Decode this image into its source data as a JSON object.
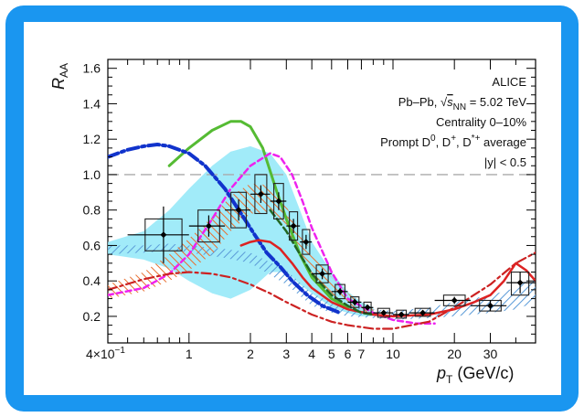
{
  "colors": {
    "frame": "#1a96f0",
    "panel": "#ffffff",
    "reference_line": "#aaaaaa",
    "data": "#000000",
    "cyan_band": "#90e8f8",
    "blue_band": "#5b9bd8",
    "orange_band": "#e87030",
    "green_curve": "#55bb33",
    "magenta_curve": "#ee22ee",
    "blue_dashdot": "#1133cc",
    "red_dashdot": "#cc2222",
    "red_curve": "#dd2222",
    "dark_green_dashed": "#226622"
  },
  "chart_data": {
    "type": "scatter",
    "title": "",
    "annotation": {
      "experiment": "ALICE",
      "collision": "Pb–Pb,",
      "sqrt_symbol": "√",
      "s_var": "s",
      "s_sub": "NN",
      "energy": " = 5.02 TeV",
      "centrality": "Centrality 0–10%",
      "prompt_prefix": "Prompt D",
      "d0_sup": "0",
      "d_plus_text": ", D",
      "d_plus_sup": "+",
      "dstar_text": ", D",
      "dstar_sup": "*+",
      "average_text": " average",
      "rapidity": "|y| < 0.5"
    },
    "ylabel_main": "R",
    "ylabel_sub": "AA",
    "xlabel_main": "p",
    "xlabel_sub": "T",
    "xlabel_unit": " (GeV/c)",
    "xscale": "log",
    "xlim": [
      0.4,
      50
    ],
    "ylim": [
      0.05,
      1.65
    ],
    "grid": false,
    "reference_line": 1.0,
    "yticks": [
      {
        "value": 0.2,
        "label": "0.2"
      },
      {
        "value": 0.4,
        "label": "0.4"
      },
      {
        "value": 0.6,
        "label": "0.6"
      },
      {
        "value": 0.8,
        "label": "0.8"
      },
      {
        "value": 1.0,
        "label": "1.0"
      },
      {
        "value": 1.2,
        "label": "1.2"
      },
      {
        "value": 1.4,
        "label": "1.4"
      },
      {
        "value": 1.6,
        "label": "1.6"
      }
    ],
    "xticks": [
      {
        "value": 0.4,
        "label": "4×10"
      },
      {
        "value": 1,
        "label": "1"
      },
      {
        "value": 2,
        "label": "2"
      },
      {
        "value": 3,
        "label": "3"
      },
      {
        "value": 4,
        "label": "4"
      },
      {
        "value": 5,
        "label": "5"
      },
      {
        "value": 6,
        "label": "6"
      },
      {
        "value": 7,
        "label": "7"
      },
      {
        "value": 10,
        "label": "10"
      },
      {
        "value": 20,
        "label": "20"
      },
      {
        "value": 30,
        "label": "30"
      }
    ],
    "first_tick_exponent": "−1",
    "points": [
      {
        "x": 0.75,
        "y": 0.66,
        "xerr": [
          0.5,
          1.0
        ],
        "yerr": 0.16,
        "sys": [
          0.57,
          0.75
        ]
      },
      {
        "x": 1.25,
        "y": 0.71,
        "xerr": [
          1.0,
          1.5
        ],
        "yerr": 0.06,
        "sys": [
          0.62,
          0.8
        ]
      },
      {
        "x": 1.75,
        "y": 0.8,
        "xerr": [
          1.5,
          2.0
        ],
        "yerr": 0.06,
        "sys": [
          0.7,
          0.9
        ]
      },
      {
        "x": 2.25,
        "y": 0.89,
        "xerr": [
          2.0,
          2.5
        ],
        "yerr": 0.05,
        "sys": [
          0.78,
          1.0
        ]
      },
      {
        "x": 2.75,
        "y": 0.85,
        "xerr": [
          2.5,
          3.0
        ],
        "yerr": 0.05,
        "sys": [
          0.75,
          0.95
        ]
      },
      {
        "x": 3.25,
        "y": 0.71,
        "xerr": [
          3.0,
          3.5
        ],
        "yerr": 0.04,
        "sys": [
          0.63,
          0.79
        ]
      },
      {
        "x": 3.75,
        "y": 0.62,
        "xerr": [
          3.5,
          4.0
        ],
        "yerr": 0.04,
        "sys": [
          0.55,
          0.69
        ]
      },
      {
        "x": 4.5,
        "y": 0.44,
        "xerr": [
          4.0,
          5.0
        ],
        "yerr": 0.03,
        "sys": [
          0.39,
          0.49
        ]
      },
      {
        "x": 5.5,
        "y": 0.34,
        "xerr": [
          5.0,
          6.0
        ],
        "yerr": 0.02,
        "sys": [
          0.3,
          0.38
        ]
      },
      {
        "x": 6.5,
        "y": 0.28,
        "xerr": [
          6.0,
          7.0
        ],
        "yerr": 0.02,
        "sys": [
          0.25,
          0.31
        ]
      },
      {
        "x": 7.5,
        "y": 0.25,
        "xerr": [
          7.0,
          8.0
        ],
        "yerr": 0.015,
        "sys": [
          0.22,
          0.28
        ]
      },
      {
        "x": 9.0,
        "y": 0.22,
        "xerr": [
          8.0,
          10.0
        ],
        "yerr": 0.015,
        "sys": [
          0.195,
          0.245
        ]
      },
      {
        "x": 11.0,
        "y": 0.21,
        "xerr": [
          10.0,
          12.0
        ],
        "yerr": 0.015,
        "sys": [
          0.19,
          0.235
        ]
      },
      {
        "x": 14.0,
        "y": 0.22,
        "xerr": [
          12.0,
          16.0
        ],
        "yerr": 0.015,
        "sys": [
          0.2,
          0.245
        ]
      },
      {
        "x": 20.0,
        "y": 0.29,
        "xerr": [
          16.0,
          24.0
        ],
        "yerr": 0.02,
        "sys": [
          0.26,
          0.32
        ]
      },
      {
        "x": 30.0,
        "y": 0.26,
        "xerr": [
          24.0,
          36.0
        ],
        "yerr": 0.03,
        "sys": [
          0.23,
          0.29
        ]
      },
      {
        "x": 42.0,
        "y": 0.39,
        "xerr": [
          36.0,
          50.0
        ],
        "yerr": 0.06,
        "sys": [
          0.32,
          0.45
        ]
      }
    ],
    "bands": [
      {
        "id": "cyan",
        "x": [
          0.4,
          0.6,
          0.8,
          1.0,
          1.3,
          1.6,
          2.0,
          2.5,
          3.0,
          3.5,
          4.0,
          5.0,
          6.0,
          7.0,
          8.0
        ],
        "lower": [
          0.55,
          0.52,
          0.47,
          0.4,
          0.33,
          0.3,
          0.35,
          0.45,
          0.45,
          0.38,
          0.33,
          0.25,
          0.22,
          0.2,
          0.2
        ],
        "upper": [
          0.62,
          0.68,
          0.8,
          0.92,
          1.05,
          1.13,
          1.16,
          1.12,
          1.0,
          0.8,
          0.62,
          0.45,
          0.34,
          0.28,
          0.25
        ]
      },
      {
        "id": "blue",
        "x": [
          0.4,
          0.6,
          0.8,
          1.0,
          1.5,
          2.0,
          3.0,
          4.0,
          5.0,
          6.0,
          8.0,
          10.0,
          15.0,
          20.0,
          30.0,
          40.0,
          50.0
        ],
        "lower": [
          0.55,
          0.56,
          0.57,
          0.56,
          0.53,
          0.5,
          0.38,
          0.26,
          0.22,
          0.2,
          0.19,
          0.18,
          0.19,
          0.2,
          0.22,
          0.24,
          0.28
        ],
        "upper": [
          0.6,
          0.6,
          0.61,
          0.6,
          0.58,
          0.56,
          0.46,
          0.33,
          0.28,
          0.26,
          0.24,
          0.23,
          0.25,
          0.28,
          0.32,
          0.36,
          0.43
        ]
      },
      {
        "id": "orange",
        "x": [
          0.4,
          0.6,
          0.8,
          1.0,
          1.3,
          1.6,
          2.0,
          2.5,
          3.0,
          3.5,
          4.0,
          5.0,
          6.0,
          7.0,
          8.0
        ],
        "lower": [
          0.3,
          0.34,
          0.4,
          0.46,
          0.55,
          0.68,
          0.78,
          0.79,
          0.7,
          0.55,
          0.44,
          0.32,
          0.25,
          0.22,
          0.2
        ],
        "upper": [
          0.38,
          0.45,
          0.55,
          0.64,
          0.76,
          0.88,
          0.95,
          0.94,
          0.82,
          0.68,
          0.56,
          0.42,
          0.33,
          0.28,
          0.25
        ]
      }
    ],
    "curves": [
      {
        "id": "green",
        "style": "solid",
        "x": [
          0.8,
          1.0,
          1.3,
          1.6,
          1.8,
          2.0,
          2.3,
          2.7,
          3.0,
          3.5,
          4.0,
          5.0,
          6.0
        ],
        "y": [
          1.05,
          1.15,
          1.25,
          1.3,
          1.3,
          1.27,
          1.15,
          0.9,
          0.75,
          0.55,
          0.42,
          0.3,
          0.25
        ]
      },
      {
        "id": "magenta",
        "style": "dashed",
        "x": [
          0.4,
          0.6,
          0.8,
          1.0,
          1.3,
          1.6,
          2.0,
          2.5,
          2.8,
          3.2,
          3.6,
          4.0,
          5.0,
          6.0,
          8.0,
          10.0,
          13.0,
          16.0
        ],
        "y": [
          0.32,
          0.36,
          0.44,
          0.55,
          0.75,
          0.92,
          1.05,
          1.12,
          1.1,
          1.0,
          0.85,
          0.7,
          0.45,
          0.3,
          0.22,
          0.18,
          0.16,
          0.16
        ]
      },
      {
        "id": "blue_dashdot",
        "style": "dashdot",
        "x": [
          0.4,
          0.5,
          0.6,
          0.7,
          0.8,
          1.0,
          1.2,
          1.5,
          1.8,
          2.1,
          2.4,
          2.8,
          3.2,
          3.8,
          4.5,
          5.5
        ],
        "y": [
          1.1,
          1.14,
          1.16,
          1.17,
          1.16,
          1.12,
          1.05,
          0.92,
          0.78,
          0.66,
          0.56,
          0.48,
          0.4,
          0.32,
          0.26,
          0.22
        ]
      },
      {
        "id": "red_dashdot",
        "style": "dashdot",
        "x": [
          0.4,
          0.6,
          0.8,
          1.0,
          1.3,
          1.6,
          2.0,
          2.5,
          3.0,
          4.0,
          5.0,
          6.0,
          8.0,
          10.0,
          15.0,
          20.0,
          30.0,
          40.0,
          50.0
        ],
        "y": [
          0.35,
          0.41,
          0.44,
          0.45,
          0.44,
          0.42,
          0.38,
          0.33,
          0.28,
          0.21,
          0.17,
          0.15,
          0.13,
          0.13,
          0.17,
          0.25,
          0.38,
          0.5,
          0.56
        ]
      },
      {
        "id": "red",
        "style": "solid",
        "x": [
          1.8,
          2.0,
          2.2,
          2.5,
          2.8,
          3.2,
          3.6,
          4.0,
          5.0,
          6.0,
          8.0,
          10.0,
          15.0,
          20.0,
          25.0,
          30.0,
          35.0,
          40.0,
          45.0,
          50.0
        ],
        "y": [
          0.6,
          0.62,
          0.63,
          0.62,
          0.58,
          0.5,
          0.42,
          0.36,
          0.28,
          0.24,
          0.21,
          0.2,
          0.21,
          0.24,
          0.28,
          0.32,
          0.4,
          0.5,
          0.46,
          0.4
        ]
      },
      {
        "id": "dark_green",
        "style": "dashed",
        "x": [
          2.5,
          3.0,
          3.5,
          4.0,
          5.0,
          6.0,
          7.0,
          8.0
        ],
        "y": [
          0.8,
          0.68,
          0.55,
          0.44,
          0.32,
          0.26,
          0.22,
          0.21
        ]
      }
    ]
  }
}
